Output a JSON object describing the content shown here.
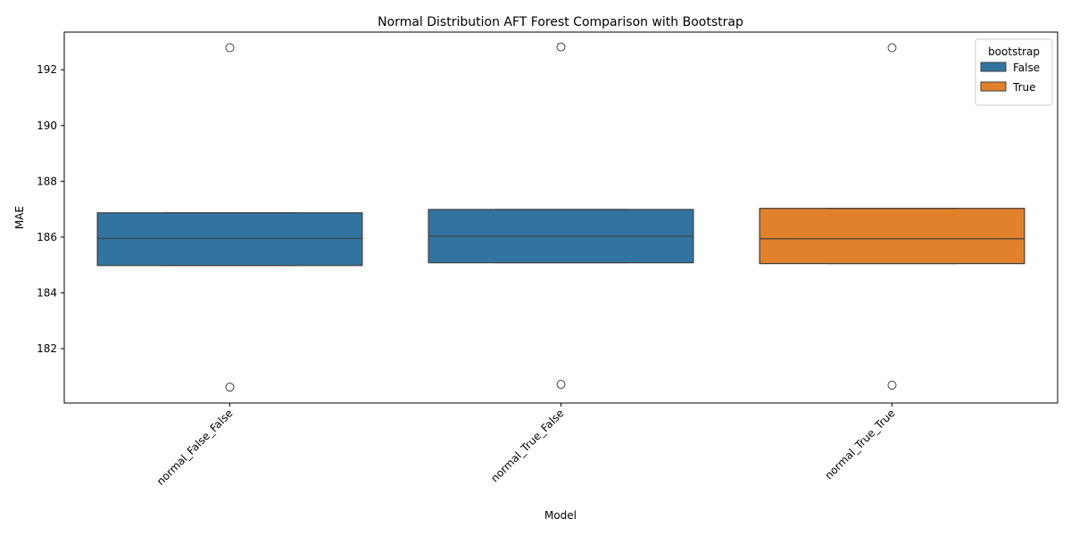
{
  "chart_data": {
    "type": "box",
    "title": "Normal Distribution AFT Forest Comparison with Bootstrap",
    "xlabel": "Model",
    "ylabel": "MAE",
    "ylim": [
      180.05,
      193.35
    ],
    "yticks": [
      182,
      184,
      186,
      188,
      190,
      192
    ],
    "grid": false,
    "legend": {
      "title": "bootstrap",
      "placement": "top-right",
      "entries": [
        {
          "label": "False",
          "color": "#3274a1"
        },
        {
          "label": "True",
          "color": "#e1812c"
        }
      ]
    },
    "categories": [
      "normal_False_False",
      "normal_True_False",
      "normal_True_True"
    ],
    "boxes": [
      {
        "category": "normal_False_False",
        "bootstrap": "False",
        "q1": 184.98,
        "median": 185.95,
        "q3": 186.87,
        "whisker_low": 184.98,
        "whisker_high": 186.87,
        "outliers": [
          192.79,
          180.62
        ]
      },
      {
        "category": "normal_True_False",
        "bootstrap": "False",
        "q1": 185.08,
        "median": 186.03,
        "q3": 186.99,
        "whisker_low": 185.08,
        "whisker_high": 186.99,
        "outliers": [
          192.82,
          180.72
        ]
      },
      {
        "category": "normal_True_True",
        "bootstrap": "True",
        "q1": 185.05,
        "median": 185.94,
        "q3": 187.03,
        "whisker_low": 185.05,
        "whisker_high": 187.03,
        "outliers": [
          192.79,
          180.69
        ]
      }
    ]
  }
}
